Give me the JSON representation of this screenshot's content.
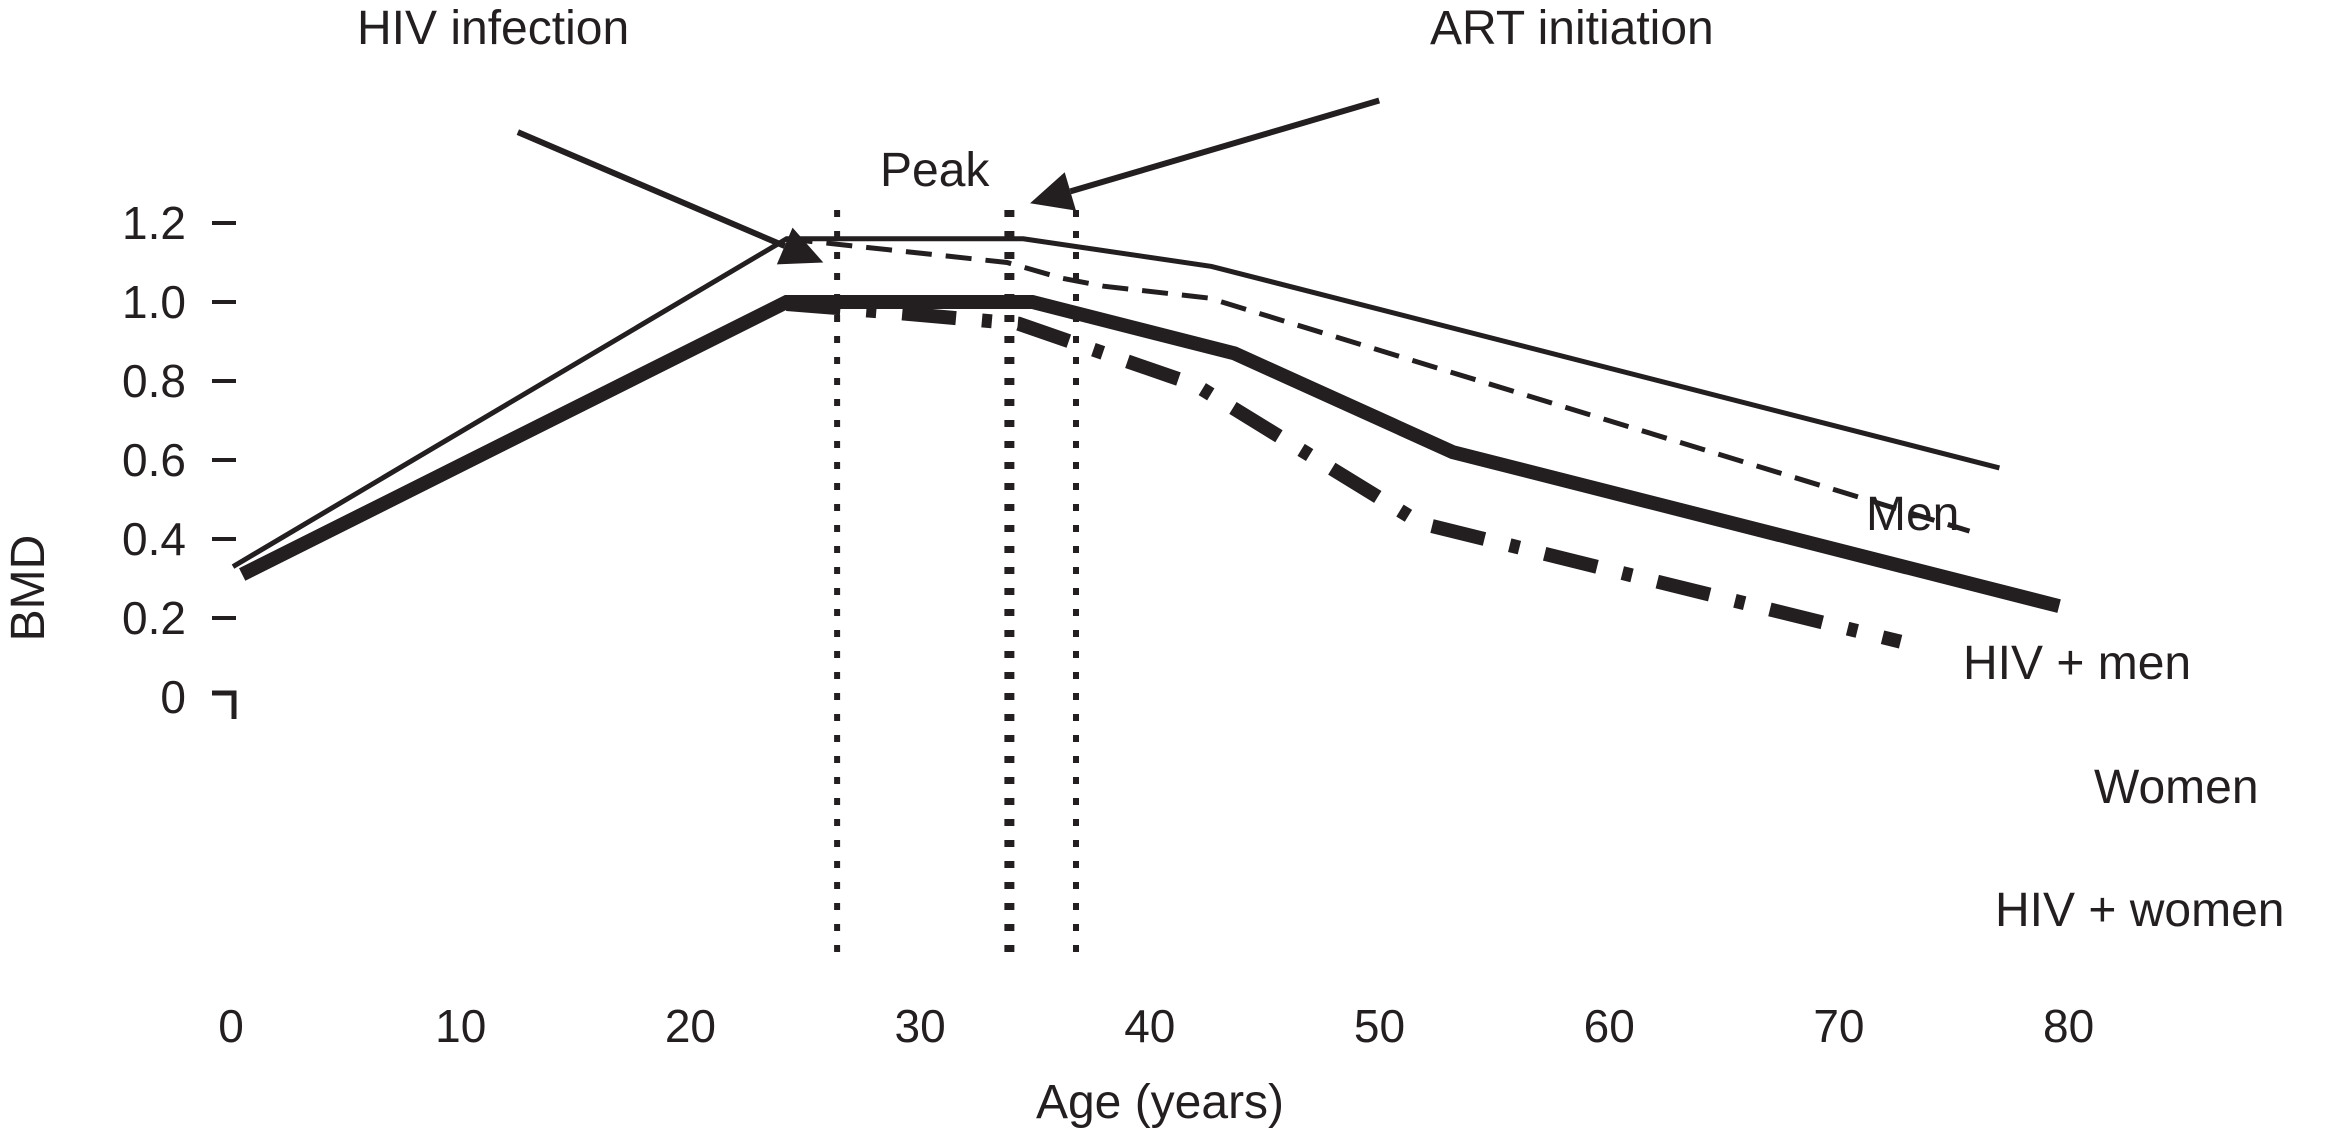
{
  "chart_data": {
    "type": "line",
    "title": "",
    "xlabel": "Age (years)",
    "ylabel": "BMD",
    "xlim": [
      0,
      80
    ],
    "ylim": [
      0,
      1.2
    ],
    "grid": false,
    "x_ticks": [
      0,
      10,
      20,
      30,
      40,
      50,
      60,
      70,
      80
    ],
    "x_tick_labels": [
      "0",
      "10",
      "20",
      "30",
      "40",
      "50",
      "60",
      "70",
      "80"
    ],
    "y_ticks": [
      0,
      0.2,
      0.4,
      0.6,
      0.8,
      1.0,
      1.2
    ],
    "y_tick_labels": [
      "0",
      "0.2",
      "0.4",
      "0.6",
      "0.8",
      "1.0",
      "1.2"
    ],
    "series": [
      {
        "name": "Men",
        "style": "solid-thin",
        "points": [
          [
            0,
            0.33
          ],
          [
            24.1,
            1.16
          ],
          [
            34.4,
            1.16
          ],
          [
            42.6,
            1.09
          ],
          [
            76.9,
            0.58
          ]
        ]
      },
      {
        "name": "HIV + men",
        "style": "dashed",
        "points": [
          [
            24.1,
            1.16
          ],
          [
            33.7,
            1.1
          ],
          [
            36.1,
            1.06
          ],
          [
            37.9,
            1.04
          ],
          [
            42.5,
            1.01
          ],
          [
            75.6,
            0.42
          ]
        ]
      },
      {
        "name": "Women",
        "style": "solid-thick",
        "points": [
          [
            0.4,
            0.31
          ],
          [
            24.1,
            1.0
          ],
          [
            34.8,
            1.0
          ],
          [
            43.6,
            0.87
          ],
          [
            53.1,
            0.62
          ],
          [
            79.5,
            0.23
          ]
        ]
      },
      {
        "name": "HIV + women",
        "style": "dash-dot-thick",
        "points": [
          [
            24.1,
            0.995
          ],
          [
            28.4,
            0.975
          ],
          [
            34.2,
            0.945
          ],
          [
            41.9,
            0.79
          ],
          [
            51.7,
            0.44
          ],
          [
            72.6,
            0.14
          ]
        ]
      }
    ],
    "vertical_markers": [
      {
        "x": 26.3,
        "style": "dotted"
      },
      {
        "x": 33.8,
        "style": "dotted-heavy"
      },
      {
        "x": 36.7,
        "style": "dotted"
      }
    ],
    "annotations": [
      {
        "text": "HIV infection",
        "arrow_from": [
          12.4,
          1.43
        ],
        "arrow_to": [
          25.7,
          1.1
        ]
      },
      {
        "text": "ART initiation",
        "arrow_from": [
          49.9,
          1.51
        ],
        "arrow_to": [
          34.7,
          1.25
        ]
      },
      {
        "text": "Peak"
      }
    ],
    "series_labels": [
      "Men",
      "HIV + men",
      "Women",
      "HIV + women"
    ],
    "colors": {
      "ink": "#231f20",
      "background": "#ffffff"
    }
  }
}
